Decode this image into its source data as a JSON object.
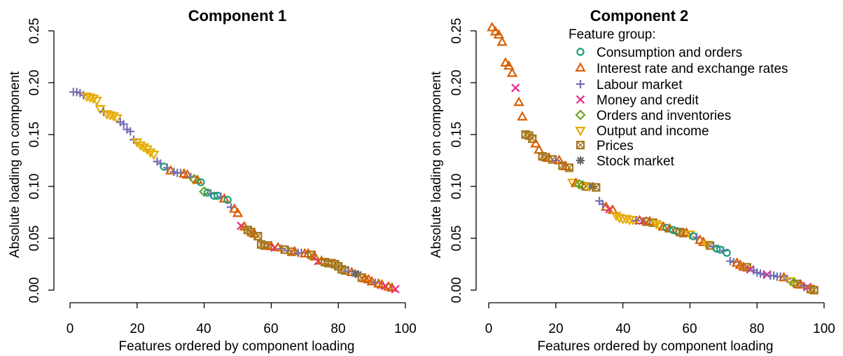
{
  "groups": [
    {
      "key": "cons",
      "name": "Consumption and orders",
      "color": "#1b9e77",
      "marker": "circle"
    },
    {
      "key": "int",
      "name": "Interest rate and exchange rates",
      "color": "#d95f02",
      "marker": "triangle-up"
    },
    {
      "key": "lab",
      "name": "Labour market",
      "color": "#7570b3",
      "marker": "plus"
    },
    {
      "key": "mon",
      "name": "Money and credit",
      "color": "#e7298a",
      "marker": "cross"
    },
    {
      "key": "ord",
      "name": "Orders and inventories",
      "color": "#66a61e",
      "marker": "diamond"
    },
    {
      "key": "out",
      "name": "Output and income",
      "color": "#e6ab02",
      "marker": "triangle-down"
    },
    {
      "key": "pri",
      "name": "Prices",
      "color": "#a6761d",
      "marker": "boxed-square"
    },
    {
      "key": "stk",
      "name": "Stock market",
      "color": "#666666",
      "marker": "asterisk"
    }
  ],
  "chart_data": [
    {
      "type": "scatter",
      "title": "Component 1",
      "xlabel": "Features ordered by component loading",
      "ylabel": "Absolute loading on component",
      "xlim": [
        0,
        100
      ],
      "ylim": [
        0,
        0.25
      ],
      "xticks": [
        0,
        20,
        40,
        60,
        80,
        100
      ],
      "yticks": [
        "0.00",
        "0.05",
        "0.10",
        "0.15",
        "0.20",
        "0.25"
      ],
      "legend": null,
      "points": [
        [
          1,
          0.191,
          "lab"
        ],
        [
          2,
          0.191,
          "lab"
        ],
        [
          3,
          0.19,
          "lab"
        ],
        [
          4,
          0.188,
          "lab"
        ],
        [
          5,
          0.187,
          "out"
        ],
        [
          6,
          0.186,
          "out"
        ],
        [
          7,
          0.185,
          "out"
        ],
        [
          8,
          0.183,
          "out"
        ],
        [
          9,
          0.175,
          "out"
        ],
        [
          10,
          0.172,
          "lab"
        ],
        [
          11,
          0.17,
          "out"
        ],
        [
          12,
          0.169,
          "out"
        ],
        [
          13,
          0.168,
          "out"
        ],
        [
          14,
          0.166,
          "out"
        ],
        [
          15,
          0.162,
          "lab"
        ],
        [
          16,
          0.16,
          "lab"
        ],
        [
          17,
          0.155,
          "lab"
        ],
        [
          18,
          0.153,
          "lab"
        ],
        [
          19,
          0.145,
          "lab"
        ],
        [
          20,
          0.143,
          "out"
        ],
        [
          21,
          0.14,
          "out"
        ],
        [
          22,
          0.138,
          "out"
        ],
        [
          23,
          0.136,
          "out"
        ],
        [
          24,
          0.133,
          "out"
        ],
        [
          25,
          0.131,
          "out"
        ],
        [
          26,
          0.124,
          "lab"
        ],
        [
          27,
          0.122,
          "lab"
        ],
        [
          28,
          0.119,
          "cons"
        ],
        [
          29,
          0.118,
          "lab"
        ],
        [
          30,
          0.115,
          "int"
        ],
        [
          31,
          0.114,
          "lab"
        ],
        [
          32,
          0.113,
          "lab"
        ],
        [
          33,
          0.113,
          "lab"
        ],
        [
          34,
          0.112,
          "int"
        ],
        [
          35,
          0.111,
          "int"
        ],
        [
          36,
          0.109,
          "lab"
        ],
        [
          37,
          0.107,
          "ord"
        ],
        [
          38,
          0.106,
          "int"
        ],
        [
          39,
          0.104,
          "cons"
        ],
        [
          40,
          0.095,
          "ord"
        ],
        [
          41,
          0.094,
          "cons"
        ],
        [
          42,
          0.093,
          "lab"
        ],
        [
          43,
          0.091,
          "cons"
        ],
        [
          44,
          0.091,
          "cons"
        ],
        [
          45,
          0.09,
          "lab"
        ],
        [
          46,
          0.088,
          "int"
        ],
        [
          47,
          0.087,
          "cons"
        ],
        [
          48,
          0.08,
          "lab"
        ],
        [
          49,
          0.078,
          "int"
        ],
        [
          50,
          0.074,
          "int"
        ],
        [
          51,
          0.062,
          "mon"
        ],
        [
          52,
          0.061,
          "int"
        ],
        [
          53,
          0.058,
          "pri"
        ],
        [
          54,
          0.056,
          "pri"
        ],
        [
          55,
          0.054,
          "int"
        ],
        [
          56,
          0.052,
          "pri"
        ],
        [
          57,
          0.044,
          "pri"
        ],
        [
          58,
          0.043,
          "pri"
        ],
        [
          59,
          0.043,
          "pri"
        ],
        [
          60,
          0.042,
          "int"
        ],
        [
          61,
          0.041,
          "mon"
        ],
        [
          62,
          0.041,
          "int"
        ],
        [
          63,
          0.04,
          "lab"
        ],
        [
          64,
          0.039,
          "pri"
        ],
        [
          65,
          0.038,
          "lab"
        ],
        [
          66,
          0.037,
          "pri"
        ],
        [
          67,
          0.037,
          "int"
        ],
        [
          68,
          0.036,
          "lab"
        ],
        [
          69,
          0.036,
          "lab"
        ],
        [
          70,
          0.035,
          "int"
        ],
        [
          71,
          0.035,
          "int"
        ],
        [
          72,
          0.034,
          "pri"
        ],
        [
          73,
          0.032,
          "int"
        ],
        [
          74,
          0.028,
          "mon"
        ],
        [
          75,
          0.028,
          "int"
        ],
        [
          76,
          0.027,
          "pri"
        ],
        [
          77,
          0.026,
          "pri"
        ],
        [
          78,
          0.026,
          "pri"
        ],
        [
          79,
          0.025,
          "pri"
        ],
        [
          80,
          0.023,
          "pri"
        ],
        [
          81,
          0.02,
          "pri"
        ],
        [
          82,
          0.019,
          "pri"
        ],
        [
          83,
          0.018,
          "lab"
        ],
        [
          84,
          0.017,
          "int"
        ],
        [
          85,
          0.016,
          "stk"
        ],
        [
          86,
          0.015,
          "stk"
        ],
        [
          87,
          0.012,
          "pri"
        ],
        [
          88,
          0.011,
          "int"
        ],
        [
          89,
          0.01,
          "int"
        ],
        [
          90,
          0.008,
          "int"
        ],
        [
          91,
          0.007,
          "lab"
        ],
        [
          92,
          0.006,
          "int"
        ],
        [
          93,
          0.005,
          "int"
        ],
        [
          94,
          0.004,
          "mon"
        ],
        [
          95,
          0.003,
          "int"
        ],
        [
          96,
          0.002,
          "int"
        ],
        [
          97,
          0.001,
          "mon"
        ]
      ]
    },
    {
      "type": "scatter",
      "title": "Component 2",
      "xlabel": "Features ordered by component loading",
      "ylabel": "Absolute loading on component",
      "xlim": [
        0,
        100
      ],
      "ylim": [
        0,
        0.25
      ],
      "xticks": [
        0,
        20,
        40,
        60,
        80,
        100
      ],
      "yticks": [
        "0.00",
        "0.05",
        "0.10",
        "0.15",
        "0.20",
        "0.25"
      ],
      "legend": {
        "title": "Feature group:",
        "position": "top-right"
      },
      "points": [
        [
          1,
          0.253,
          "int"
        ],
        [
          2,
          0.249,
          "int"
        ],
        [
          3,
          0.246,
          "int"
        ],
        [
          4,
          0.239,
          "int"
        ],
        [
          5,
          0.219,
          "int"
        ],
        [
          6,
          0.216,
          "int"
        ],
        [
          7,
          0.209,
          "int"
        ],
        [
          8,
          0.195,
          "mon"
        ],
        [
          9,
          0.181,
          "int"
        ],
        [
          10,
          0.167,
          "int"
        ],
        [
          11,
          0.15,
          "pri"
        ],
        [
          12,
          0.149,
          "pri"
        ],
        [
          13,
          0.146,
          "pri"
        ],
        [
          14,
          0.141,
          "int"
        ],
        [
          15,
          0.135,
          "int"
        ],
        [
          16,
          0.129,
          "pri"
        ],
        [
          17,
          0.128,
          "pri"
        ],
        [
          18,
          0.127,
          "int"
        ],
        [
          19,
          0.126,
          "pri"
        ],
        [
          20,
          0.125,
          "lab"
        ],
        [
          21,
          0.125,
          "int"
        ],
        [
          22,
          0.12,
          "pri"
        ],
        [
          23,
          0.119,
          "int"
        ],
        [
          24,
          0.118,
          "pri"
        ],
        [
          25,
          0.104,
          "out"
        ],
        [
          26,
          0.103,
          "int"
        ],
        [
          27,
          0.102,
          "ord"
        ],
        [
          28,
          0.101,
          "ord"
        ],
        [
          29,
          0.1,
          "pri"
        ],
        [
          30,
          0.1,
          "out"
        ],
        [
          31,
          0.1,
          "stk"
        ],
        [
          32,
          0.099,
          "pri"
        ],
        [
          33,
          0.086,
          "lab"
        ],
        [
          34,
          0.083,
          "lab"
        ],
        [
          35,
          0.08,
          "int"
        ],
        [
          36,
          0.078,
          "mon"
        ],
        [
          37,
          0.077,
          "int"
        ],
        [
          38,
          0.072,
          "out"
        ],
        [
          39,
          0.07,
          "out"
        ],
        [
          40,
          0.069,
          "out"
        ],
        [
          41,
          0.069,
          "out"
        ],
        [
          42,
          0.068,
          "out"
        ],
        [
          43,
          0.068,
          "out"
        ],
        [
          44,
          0.067,
          "lab"
        ],
        [
          45,
          0.067,
          "int"
        ],
        [
          46,
          0.067,
          "mon"
        ],
        [
          47,
          0.066,
          "pri"
        ],
        [
          48,
          0.066,
          "int"
        ],
        [
          49,
          0.065,
          "pri"
        ],
        [
          50,
          0.064,
          "out"
        ],
        [
          51,
          0.062,
          "out"
        ],
        [
          52,
          0.061,
          "int"
        ],
        [
          53,
          0.06,
          "cons"
        ],
        [
          54,
          0.059,
          "int"
        ],
        [
          55,
          0.058,
          "cons"
        ],
        [
          56,
          0.057,
          "cons"
        ],
        [
          57,
          0.056,
          "pri"
        ],
        [
          58,
          0.055,
          "pri"
        ],
        [
          59,
          0.055,
          "int"
        ],
        [
          60,
          0.054,
          "out"
        ],
        [
          61,
          0.052,
          "cons"
        ],
        [
          62,
          0.051,
          "lab"
        ],
        [
          63,
          0.048,
          "int"
        ],
        [
          64,
          0.046,
          "int"
        ],
        [
          65,
          0.044,
          "out"
        ],
        [
          66,
          0.043,
          "pri"
        ],
        [
          67,
          0.042,
          "lab"
        ],
        [
          68,
          0.04,
          "cons"
        ],
        [
          69,
          0.039,
          "cons"
        ],
        [
          70,
          0.038,
          "lab"
        ],
        [
          71,
          0.036,
          "cons"
        ],
        [
          72,
          0.028,
          "lab"
        ],
        [
          73,
          0.027,
          "lab"
        ],
        [
          74,
          0.026,
          "int"
        ],
        [
          75,
          0.024,
          "int"
        ],
        [
          76,
          0.022,
          "int"
        ],
        [
          77,
          0.022,
          "pri"
        ],
        [
          78,
          0.02,
          "mon"
        ],
        [
          79,
          0.019,
          "lab"
        ],
        [
          80,
          0.017,
          "lab"
        ],
        [
          81,
          0.016,
          "lab"
        ],
        [
          82,
          0.015,
          "lab"
        ],
        [
          83,
          0.015,
          "mon"
        ],
        [
          84,
          0.014,
          "lab"
        ],
        [
          85,
          0.014,
          "lab"
        ],
        [
          86,
          0.013,
          "lab"
        ],
        [
          87,
          0.013,
          "lab"
        ],
        [
          88,
          0.012,
          "int"
        ],
        [
          89,
          0.011,
          "lab"
        ],
        [
          90,
          0.009,
          "out"
        ],
        [
          91,
          0.007,
          "ord"
        ],
        [
          92,
          0.006,
          "pri"
        ],
        [
          93,
          0.005,
          "int"
        ],
        [
          94,
          0.004,
          "lab"
        ],
        [
          95,
          0.003,
          "mon"
        ],
        [
          96,
          0.001,
          "pri"
        ],
        [
          97,
          0.0,
          "pri"
        ]
      ]
    }
  ]
}
